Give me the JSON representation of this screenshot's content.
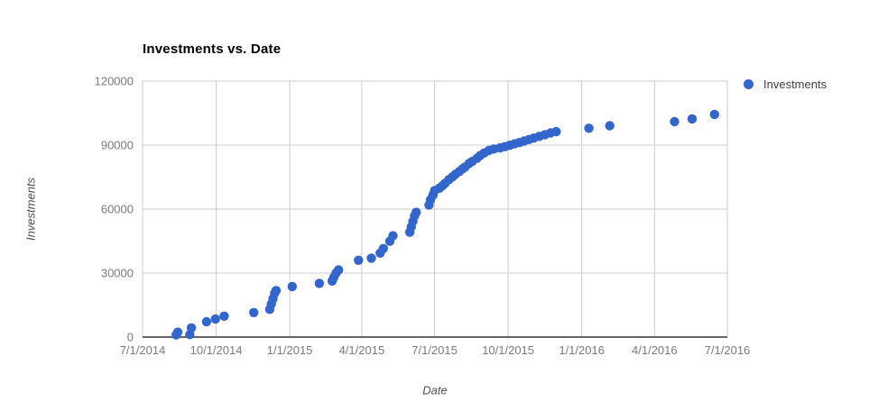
{
  "chart_data": {
    "type": "scatter",
    "title": "Investments vs. Date",
    "xlabel": "Date",
    "ylabel": "Investments",
    "x_tick_labels": [
      "7/1/2014",
      "10/1/2014",
      "1/1/2015",
      "4/1/2015",
      "7/1/2015",
      "10/1/2015",
      "1/1/2016",
      "4/1/2016",
      "7/1/2016"
    ],
    "y_ticks": [
      0,
      30000,
      60000,
      90000,
      120000
    ],
    "xlim": [
      "7/1/2014",
      "7/1/2016"
    ],
    "ylim": [
      0,
      120000
    ],
    "grid": true,
    "legend": {
      "position": "right",
      "entries": [
        {
          "label": "Investments",
          "color": "#3366cc"
        }
      ]
    },
    "series": [
      {
        "name": "Investments",
        "color": "#3366cc",
        "marker": "circle",
        "points": [
          [
            "8/12/2014",
            1000
          ],
          [
            "8/14/2014",
            2300
          ],
          [
            "8/29/2014",
            1200
          ],
          [
            "8/31/2014",
            4300
          ],
          [
            "9/19/2014",
            7200
          ],
          [
            "9/30/2014",
            8500
          ],
          [
            "10/11/2014",
            9800
          ],
          [
            "11/17/2014",
            11500
          ],
          [
            "12/7/2014",
            13000
          ],
          [
            "12/9/2014",
            15500
          ],
          [
            "12/11/2014",
            18000
          ],
          [
            "12/13/2014",
            20500
          ],
          [
            "12/15/2014",
            21800
          ],
          [
            "1/4/2015",
            23700
          ],
          [
            "2/7/2015",
            25200
          ],
          [
            "2/23/2015",
            26300
          ],
          [
            "2/25/2015",
            28000
          ],
          [
            "2/28/2015",
            30100
          ],
          [
            "3/3/2015",
            31500
          ],
          [
            "3/28/2015",
            36000
          ],
          [
            "4/13/2015",
            37000
          ],
          [
            "4/24/2015",
            39400
          ],
          [
            "4/28/2015",
            41500
          ],
          [
            "5/6/2015",
            44900
          ],
          [
            "5/10/2015",
            47500
          ],
          [
            "5/31/2015",
            49200
          ],
          [
            "6/2/2015",
            51700
          ],
          [
            "6/4/2015",
            54300
          ],
          [
            "6/6/2015",
            56800
          ],
          [
            "6/8/2015",
            58500
          ],
          [
            "6/24/2015",
            61900
          ],
          [
            "6/26/2015",
            64400
          ],
          [
            "6/29/2015",
            66600
          ],
          [
            "7/1/2015",
            68700
          ],
          [
            "7/7/2015",
            69800
          ],
          [
            "7/11/2015",
            71000
          ],
          [
            "7/14/2015",
            72100
          ],
          [
            "7/19/2015",
            73800
          ],
          [
            "7/23/2015",
            75000
          ],
          [
            "7/27/2015",
            76300
          ],
          [
            "8/1/2015",
            77600
          ],
          [
            "8/5/2015",
            78900
          ],
          [
            "8/8/2015",
            79700
          ],
          [
            "8/13/2015",
            81400
          ],
          [
            "8/17/2015",
            82300
          ],
          [
            "8/23/2015",
            83800
          ],
          [
            "8/27/2015",
            85100
          ],
          [
            "9/1/2015",
            86300
          ],
          [
            "9/7/2015",
            87500
          ],
          [
            "9/13/2015",
            88200
          ],
          [
            "9/21/2015",
            88700
          ],
          [
            "9/27/2015",
            89300
          ],
          [
            "10/3/2015",
            89900
          ],
          [
            "10/9/2015",
            90600
          ],
          [
            "10/15/2015",
            91200
          ],
          [
            "10/21/2015",
            91900
          ],
          [
            "10/27/2015",
            92600
          ],
          [
            "11/2/2015",
            93300
          ],
          [
            "11/9/2015",
            94100
          ],
          [
            "11/16/2015",
            94900
          ],
          [
            "11/23/2015",
            95700
          ],
          [
            "11/30/2015",
            96300
          ],
          [
            "1/10/2016",
            97900
          ],
          [
            "2/5/2016",
            99100
          ],
          [
            "4/26/2016",
            101000
          ],
          [
            "5/18/2016",
            102300
          ],
          [
            "6/15/2016",
            104400
          ]
        ]
      }
    ]
  },
  "colors": {
    "background": "#ffffff",
    "series_blue": "#3366cc",
    "grid": "#cccccc",
    "baseline": "#333333",
    "tick_label": "#7a7a7a",
    "title": "#000000",
    "axis_title": "#4d4d4d",
    "legend_text": "#404040"
  }
}
